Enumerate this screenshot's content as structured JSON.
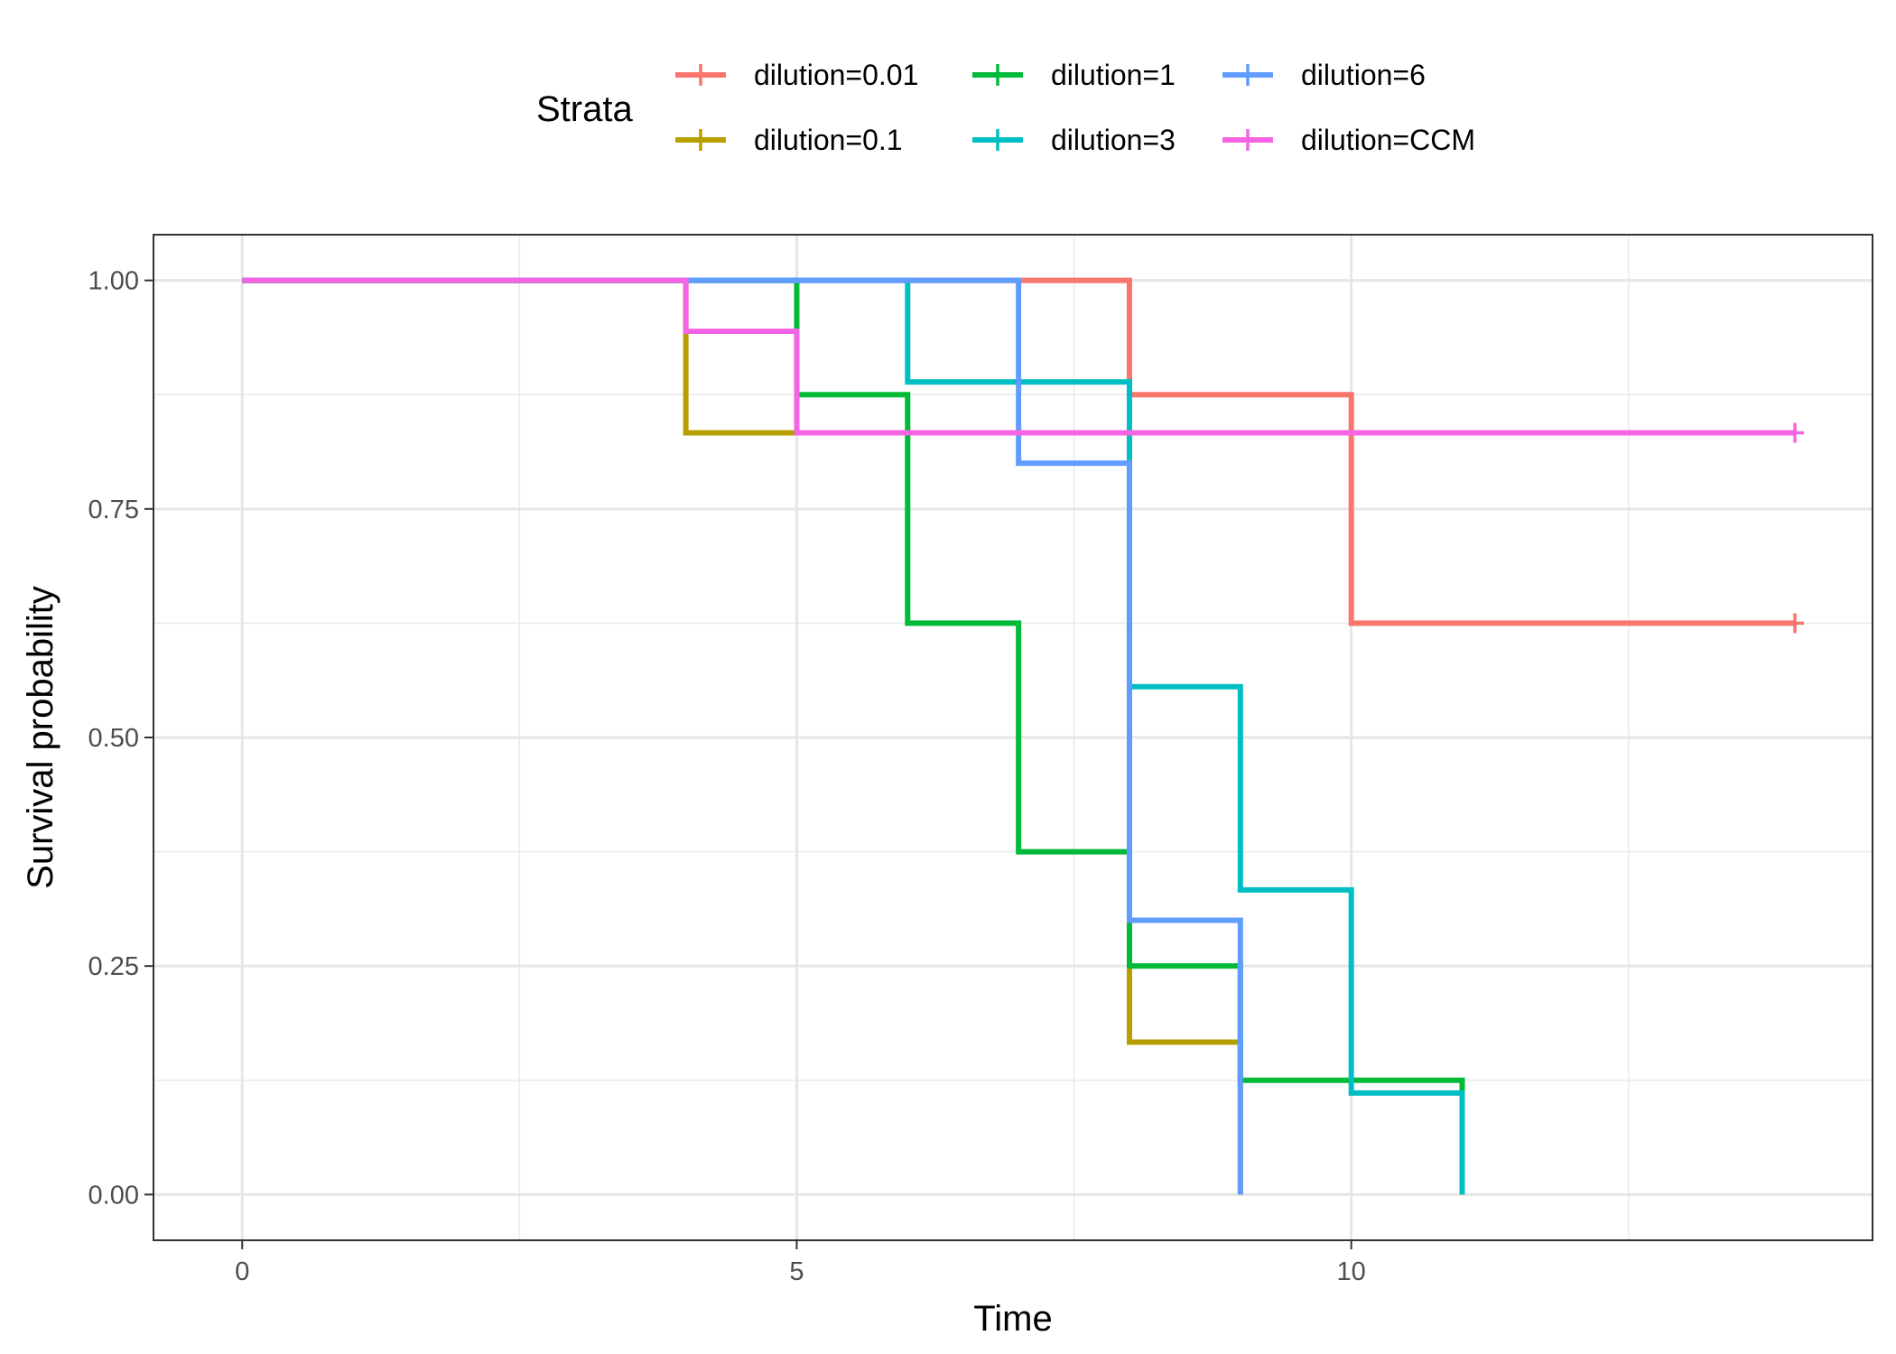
{
  "chart_data": {
    "type": "line",
    "step": true,
    "xlabel": "Time",
    "ylabel": "Survival probability",
    "xlim": [
      -0.8,
      14.7
    ],
    "ylim": [
      -0.05,
      1.05
    ],
    "x_ticks": [
      0,
      5,
      10
    ],
    "x_tick_labels": [
      "0",
      "5",
      "10"
    ],
    "y_ticks": [
      0,
      0.25,
      0.5,
      0.75,
      1
    ],
    "y_tick_labels": [
      "0.00",
      "0.25",
      "0.50",
      "0.75",
      "1.00"
    ],
    "grid": true,
    "legend": {
      "title": "Strata",
      "position": "top",
      "layout": "2 rows x 3 columns"
    },
    "series": [
      {
        "name": "dilution=0.01",
        "color": "#F8766D",
        "x": [
          0,
          8,
          10,
          14
        ],
        "y": [
          1.0,
          0.875,
          0.625,
          0.625
        ],
        "censored": [
          {
            "x": 14,
            "y": 0.625
          }
        ]
      },
      {
        "name": "dilution=0.1",
        "color": "#B79F00",
        "x": [
          0,
          4,
          8,
          9
        ],
        "y": [
          1.0,
          0.8333,
          0.1667,
          0.0
        ],
        "censored": []
      },
      {
        "name": "dilution=1",
        "color": "#00BA38",
        "x": [
          0,
          5,
          6,
          7,
          8,
          9,
          11
        ],
        "y": [
          1.0,
          0.875,
          0.625,
          0.375,
          0.25,
          0.125,
          0.0
        ],
        "censored": []
      },
      {
        "name": "dilution=3",
        "color": "#00BFC4",
        "x": [
          0,
          6,
          8,
          9,
          10,
          11
        ],
        "y": [
          1.0,
          0.8889,
          0.5556,
          0.3333,
          0.1111,
          0.0
        ],
        "censored": []
      },
      {
        "name": "dilution=6",
        "color": "#619CFF",
        "x": [
          0,
          7,
          8,
          9
        ],
        "y": [
          1.0,
          0.8,
          0.3,
          0.0
        ],
        "censored": []
      },
      {
        "name": "dilution=CCM",
        "color": "#F564E3",
        "x": [
          0,
          4,
          5,
          14
        ],
        "y": [
          1.0,
          0.9444,
          0.8333,
          0.8333
        ],
        "censored": [
          {
            "x": 14,
            "y": 0.8333
          }
        ]
      }
    ]
  }
}
